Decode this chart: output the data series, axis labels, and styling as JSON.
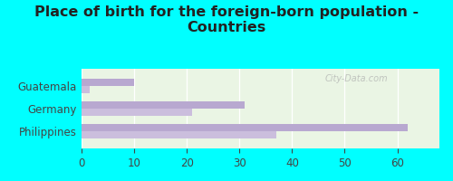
{
  "title": "Place of birth for the foreign-born population -\nCountries",
  "categories": [
    "Philippines",
    "Germany",
    "Guatemala"
  ],
  "bar1_values": [
    62,
    31,
    10
  ],
  "bar2_values": [
    37,
    21,
    1.5
  ],
  "bar_color1": "#b8a8d0",
  "bar_color2": "#cbbedd",
  "background_outer": "#00ffff",
  "background_inner": "#eaf5e4",
  "xlim": [
    0,
    68
  ],
  "xticks": [
    0,
    10,
    20,
    30,
    40,
    50,
    60
  ],
  "bar_height": 0.32,
  "title_fontsize": 11.5,
  "label_fontsize": 8.5,
  "tick_fontsize": 8.5,
  "watermark": "City-Data.com"
}
